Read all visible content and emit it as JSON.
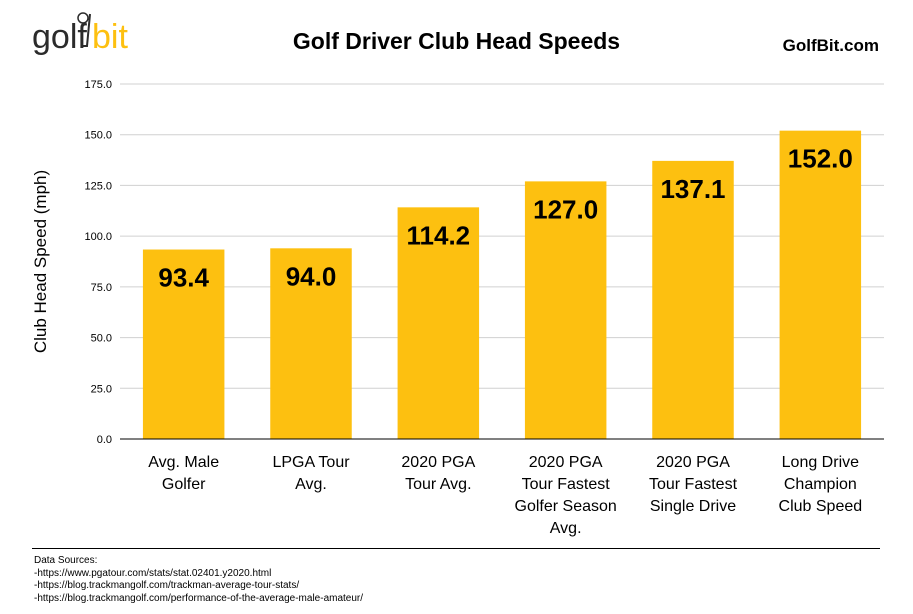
{
  "brand": {
    "logo_text_main": "golf",
    "logo_text_accent": "bit",
    "site_label": "GolfBit.com",
    "accent_color": "#FDC010",
    "logo_text_color": "#2b2b2b"
  },
  "chart_data": {
    "type": "bar",
    "title": "Golf Driver Club Head Speeds",
    "xlabel": "",
    "ylabel": "Club Head Speed (mph)",
    "ylim": [
      0,
      175
    ],
    "yticks": [
      "0.0",
      "25.0",
      "50.0",
      "75.0",
      "100.0",
      "125.0",
      "150.0",
      "175.0"
    ],
    "categories": [
      [
        "Avg. Male",
        "Golfer"
      ],
      [
        "LPGA Tour",
        "Avg."
      ],
      [
        "2020 PGA",
        "Tour Avg."
      ],
      [
        "2020 PGA",
        "Tour Fastest",
        "Golfer Season",
        "Avg."
      ],
      [
        "2020 PGA",
        "Tour Fastest",
        "Single Drive"
      ],
      [
        "Long Drive",
        "Champion",
        "Club Speed"
      ]
    ],
    "values": [
      93.4,
      94.0,
      114.2,
      127.0,
      137.1,
      152.0
    ],
    "data_labels": [
      "93.4",
      "94.0",
      "114.2",
      "127.0",
      "137.1",
      "152.0"
    ],
    "bar_color": "#FDC010",
    "grid": true,
    "legend": "none"
  },
  "sources": {
    "heading": "Data Sources:",
    "items": [
      "-https://www.pgatour.com/stats/stat.02401.y2020.html",
      "-https://blog.trackmangolf.com/trackman-average-tour-stats/",
      "-https://blog.trackmangolf.com/performance-of-the-average-male-amateur/"
    ]
  }
}
